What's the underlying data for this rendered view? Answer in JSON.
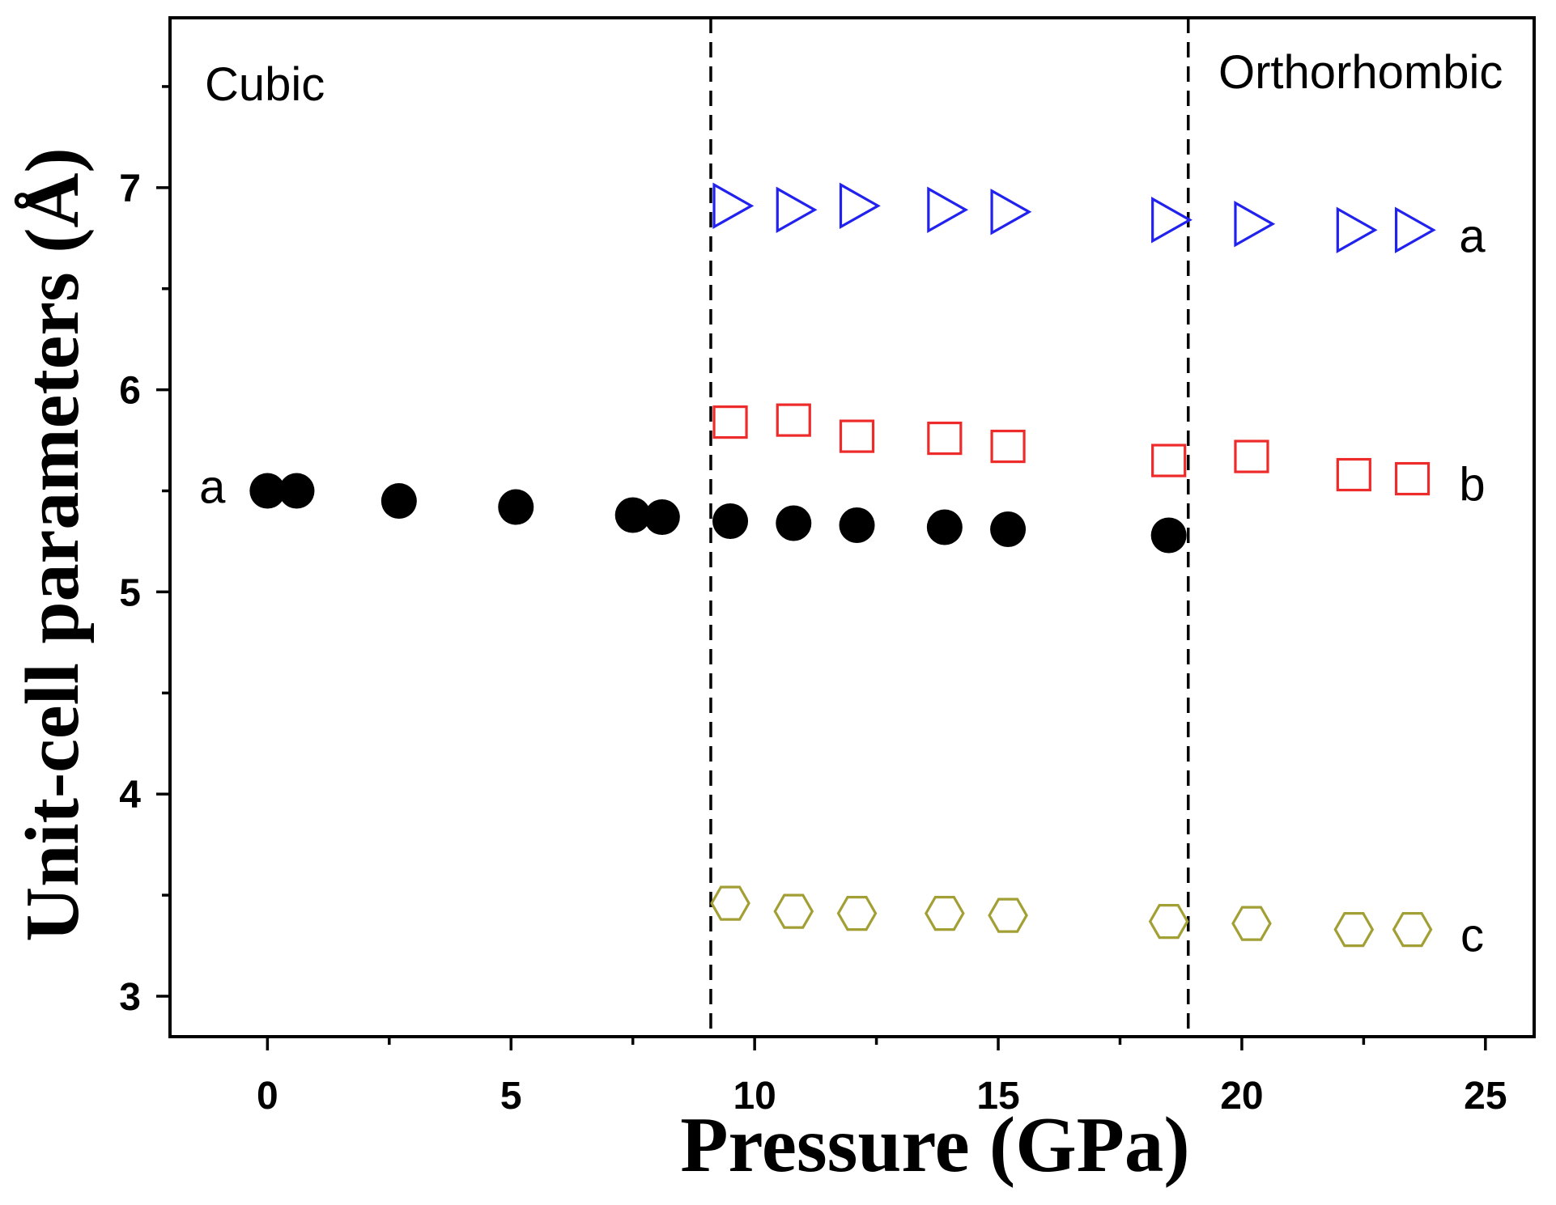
{
  "chart_data": {
    "type": "scatter",
    "xlabel": "Pressure (GPa)",
    "ylabel": "Unit-cell parameters (Å)",
    "xlim": [
      -2,
      26
    ],
    "ylim": [
      2.8,
      7.84
    ],
    "xticks": [
      0,
      5,
      10,
      15,
      20,
      25
    ],
    "yticks": [
      3,
      4,
      5,
      6,
      7
    ],
    "grid": false,
    "phases": [
      "Cubic",
      "Orthorhombic"
    ],
    "phase_boundaries": [
      9.1,
      18.9
    ],
    "series": [
      {
        "label": "a",
        "label_position": "left",
        "marker": "circle",
        "filled": true,
        "color": "#000000",
        "x": [
          0.0,
          0.6,
          2.7,
          5.1,
          7.5,
          8.1,
          9.5,
          10.8,
          12.1,
          13.9,
          15.2,
          18.5
        ],
        "y": [
          5.5,
          5.5,
          5.45,
          5.42,
          5.38,
          5.37,
          5.35,
          5.34,
          5.33,
          5.32,
          5.31,
          5.28
        ]
      },
      {
        "label": "a",
        "label_position": "right",
        "marker": "triangle-right",
        "filled": false,
        "color": "#2222ee",
        "x": [
          9.5,
          10.8,
          12.1,
          13.9,
          15.2,
          18.5,
          20.2,
          22.3,
          23.5
        ],
        "y": [
          6.91,
          6.89,
          6.91,
          6.89,
          6.88,
          6.84,
          6.82,
          6.79,
          6.79
        ]
      },
      {
        "label": "b",
        "label_position": "right",
        "marker": "square",
        "filled": false,
        "color": "#ee2b2b",
        "x": [
          9.5,
          10.8,
          12.1,
          13.9,
          15.2,
          18.5,
          20.2,
          22.3,
          23.5
        ],
        "y": [
          5.84,
          5.85,
          5.77,
          5.76,
          5.72,
          5.65,
          5.67,
          5.58,
          5.56
        ]
      },
      {
        "label": "c",
        "label_position": "right",
        "marker": "hexagon",
        "filled": false,
        "color": "#a29f35",
        "x": [
          9.5,
          10.8,
          12.1,
          13.9,
          15.2,
          18.5,
          20.2,
          22.3,
          23.5
        ],
        "y": [
          3.46,
          3.42,
          3.41,
          3.41,
          3.4,
          3.37,
          3.36,
          3.33,
          3.33
        ]
      }
    ]
  }
}
